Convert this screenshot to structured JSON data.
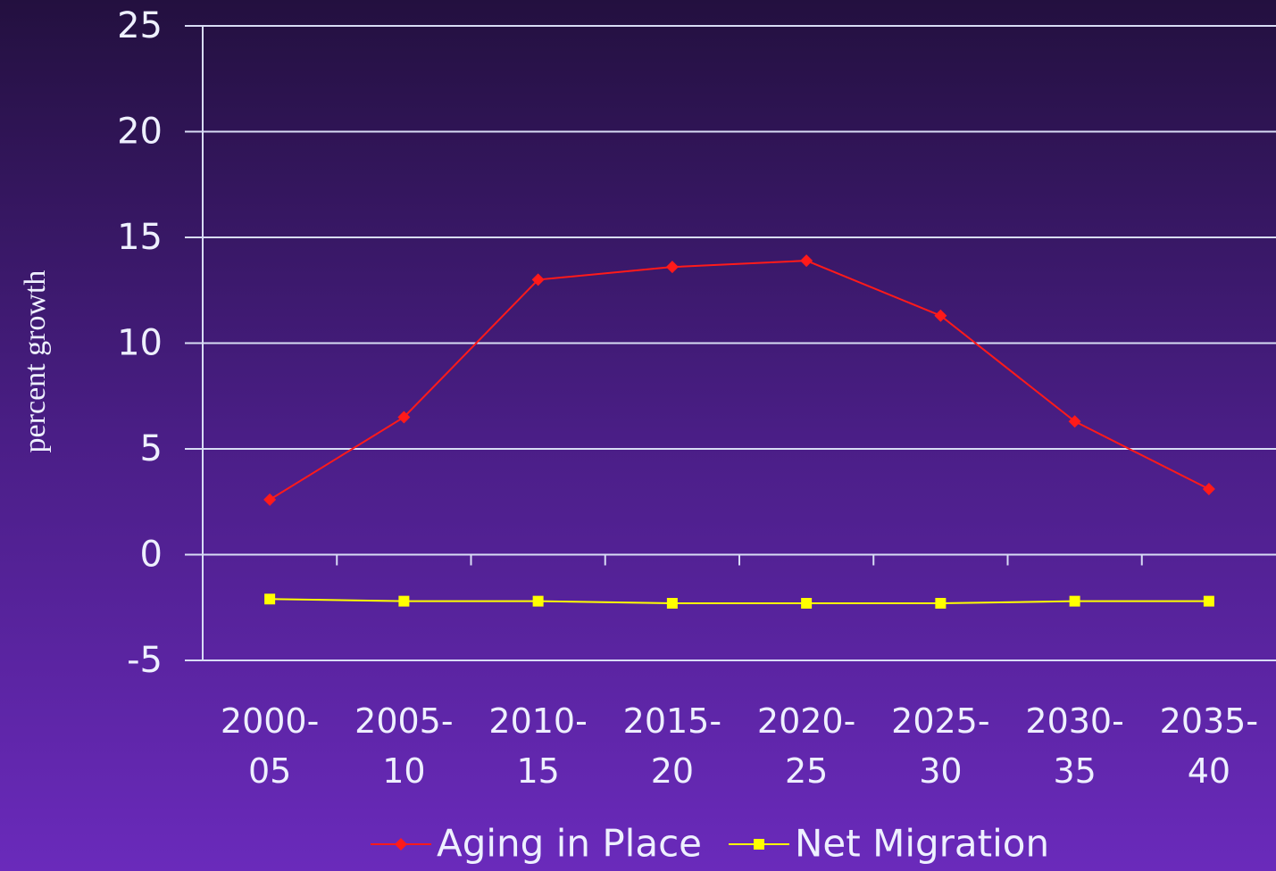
{
  "chart_data": {
    "type": "line",
    "y_axis_label": "percent growth",
    "categories": [
      "2000-05",
      "2005-10",
      "2010-15",
      "2015-20",
      "2020-25",
      "2025-30",
      "2030-35",
      "2035-40"
    ],
    "series": [
      {
        "name": "Aging in Place",
        "color": "#ff1a1a",
        "marker": "diamond",
        "values": [
          2.6,
          6.5,
          13.0,
          13.6,
          13.9,
          11.3,
          6.3,
          3.1
        ]
      },
      {
        "name": "Net Migration",
        "color": "#ffff00",
        "marker": "square",
        "values": [
          -2.1,
          -2.2,
          -2.2,
          -2.3,
          -2.3,
          -2.3,
          -2.2,
          -2.2
        ]
      }
    ],
    "ylim": [
      -5,
      25
    ],
    "yticks": [
      -5,
      0,
      5,
      10,
      15,
      20,
      25
    ],
    "grid": true,
    "legend": "bottom"
  }
}
